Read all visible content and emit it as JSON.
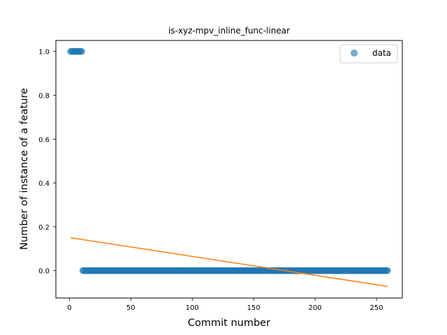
{
  "chart_data": {
    "type": "scatter",
    "title": "is-xyz-mpv_inline_func-linear",
    "xlabel": "Commit number",
    "ylabel": "Number of instance of a feature",
    "xlim": [
      -11,
      271
    ],
    "ylim": [
      -0.125,
      1.05
    ],
    "xticks": [
      0,
      50,
      100,
      150,
      200,
      250
    ],
    "yticks": [
      0.0,
      0.2,
      0.4,
      0.6,
      0.8,
      1.0
    ],
    "xtick_labels": [
      "0",
      "50",
      "100",
      "150",
      "200",
      "250"
    ],
    "ytick_labels": [
      "0.0",
      "0.2",
      "0.4",
      "0.6",
      "0.8",
      "1.0"
    ],
    "legend": {
      "entries": [
        "data"
      ],
      "placement": "top-right"
    },
    "grid": false,
    "series": [
      {
        "name": "data",
        "kind": "scatter",
        "color": "#1f77b4",
        "alpha": 0.6,
        "segments": [
          {
            "x_from": 1,
            "x_to": 10,
            "y": 1.0
          },
          {
            "x_from": 11,
            "x_to": 259,
            "y": 0.0
          }
        ]
      },
      {
        "kind": "line",
        "color": "#ff7f0e",
        "x": [
          1,
          259
        ],
        "y": [
          0.15,
          -0.072
        ]
      }
    ]
  }
}
